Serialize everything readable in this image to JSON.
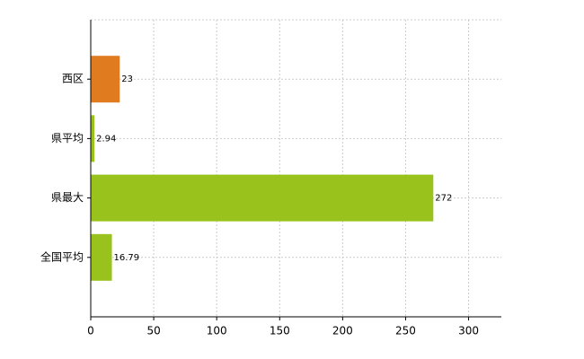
{
  "chart_data": {
    "type": "bar",
    "orientation": "horizontal",
    "categories": [
      "西区",
      "県平均",
      "県最大",
      "全国平均"
    ],
    "values": [
      23,
      2.94,
      272,
      16.79
    ],
    "colors": [
      "#e07b20",
      "#99c31c",
      "#99c31c",
      "#99c31c"
    ],
    "xlim": [
      0,
      326
    ],
    "xticks": [
      0,
      50,
      100,
      150,
      200,
      250,
      300
    ],
    "grid": true
  }
}
